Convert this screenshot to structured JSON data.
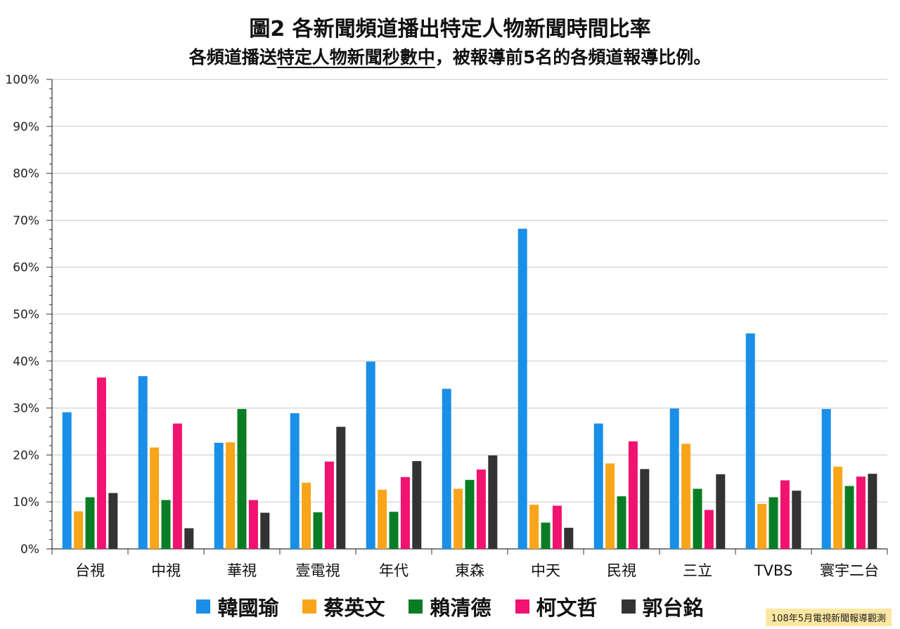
{
  "chart_data": {
    "type": "bar",
    "title": "圖2 各新聞頻道播出特定人物新聞時間比率",
    "subtitle_underlined": "特定人物新聞秒數中",
    "subtitle_prefix": "各頻道播送",
    "subtitle_suffix": "，被報導前5名的各頻道報導比例。",
    "categories": [
      "台視",
      "中視",
      "華視",
      "壹電視",
      "年代",
      "東森",
      "中天",
      "民視",
      "三立",
      "TVBS",
      "寰宇二台"
    ],
    "series": [
      {
        "name": "韓國瑜",
        "color": "#1a8fe8",
        "values": [
          29.1,
          36.8,
          22.6,
          28.9,
          39.9,
          34.1,
          68.2,
          26.7,
          29.9,
          45.9,
          29.8
        ]
      },
      {
        "name": "蔡英文",
        "color": "#f9a51a",
        "values": [
          8.0,
          21.6,
          22.7,
          14.1,
          12.6,
          12.8,
          9.4,
          18.2,
          22.4,
          9.6,
          17.5
        ]
      },
      {
        "name": "賴清德",
        "color": "#0a7d24",
        "values": [
          11.0,
          10.4,
          29.8,
          7.8,
          7.9,
          14.7,
          5.6,
          11.2,
          12.8,
          11.0,
          13.4
        ]
      },
      {
        "name": "柯文哲",
        "color": "#f2126f",
        "values": [
          36.5,
          26.7,
          10.4,
          18.6,
          15.3,
          16.9,
          9.2,
          22.9,
          8.3,
          14.6,
          15.4
        ]
      },
      {
        "name": "郭台銘",
        "color": "#333333",
        "values": [
          11.9,
          4.4,
          7.7,
          26.0,
          18.7,
          19.9,
          4.5,
          17.0,
          15.9,
          12.4,
          16.0
        ]
      }
    ],
    "ylabel": "",
    "xlabel": "",
    "ylim": [
      0,
      100
    ],
    "yticks": [
      "0%",
      "10%",
      "20%",
      "30%",
      "40%",
      "50%",
      "60%",
      "70%",
      "80%",
      "90%",
      "100%"
    ],
    "grid": true,
    "legend": "bottom",
    "footnote": "108年5月電視新聞報導觀測"
  }
}
